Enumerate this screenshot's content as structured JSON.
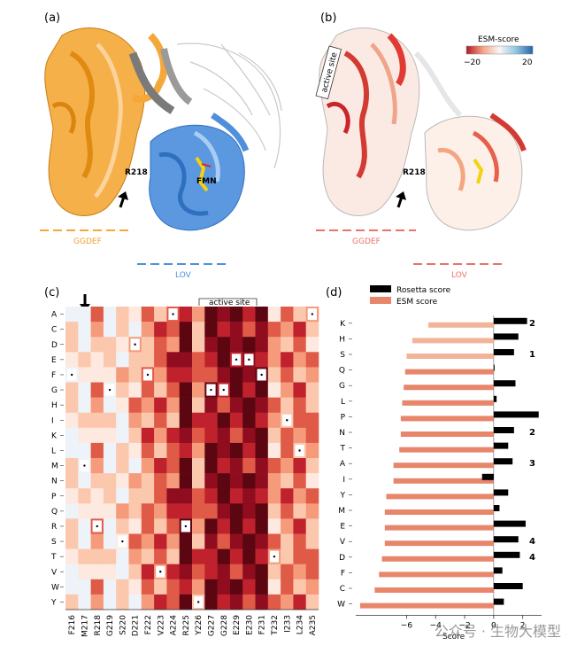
{
  "panels": {
    "a": {
      "label": "(a)",
      "residue_label": "R218",
      "fmn_label": "FMN",
      "domain_left": "GGDEF",
      "domain_right": "LOV",
      "colors": {
        "ggdef": "#f5a83a",
        "lov": "#4f8fdc",
        "linker": "#7a7a7a"
      }
    },
    "b": {
      "label": "(b)",
      "residue_label": "R218",
      "active_site_label": "active site",
      "domain_left": "GGDEF",
      "domain_right": "LOV",
      "colorbar_title": "ESM-score",
      "colorbar_min": "−20",
      "colorbar_max": "20",
      "colorbar_colors": [
        "#b2182b",
        "#d6604d",
        "#f4a582",
        "#fddbc7",
        "#f7f7f7",
        "#d1e5f0",
        "#92c5de",
        "#4393c3",
        "#2166ac"
      ],
      "domain_color": "#e8736b"
    },
    "c": {
      "label": "(c)",
      "active_site_label": "active site"
    },
    "d": {
      "label": "(d)",
      "legend_rosetta": "Rosetta score",
      "legend_esm": "ESM score",
      "xlabel": "Score",
      "xticks": [
        "−6",
        "−4",
        "−2",
        "0",
        "2"
      ]
    }
  },
  "heatmap": {
    "rows": [
      "A",
      "C",
      "D",
      "E",
      "F",
      "G",
      "H",
      "I",
      "K",
      "L",
      "M",
      "N",
      "P",
      "Q",
      "R",
      "S",
      "T",
      "V",
      "W",
      "Y"
    ],
    "cols": [
      "F216",
      "M217",
      "R218",
      "G219",
      "S220",
      "D221",
      "F222",
      "V223",
      "A224",
      "R225",
      "Y226",
      "G227",
      "G228",
      "E229",
      "E230",
      "F231",
      "T232",
      "I233",
      "L234",
      "A235"
    ],
    "wildtype_dots": [
      [
        4,
        0
      ],
      [
        10,
        1
      ],
      [
        14,
        2
      ],
      [
        5,
        3
      ],
      [
        15,
        4
      ],
      [
        2,
        5
      ],
      [
        4,
        6
      ],
      [
        17,
        7
      ],
      [
        0,
        8
      ],
      [
        14,
        9
      ],
      [
        19,
        10
      ],
      [
        5,
        11
      ],
      [
        5,
        12
      ],
      [
        3,
        13
      ],
      [
        3,
        14
      ],
      [
        4,
        15
      ],
      [
        16,
        16
      ],
      [
        7,
        17
      ],
      [
        9,
        18
      ],
      [
        0,
        19
      ]
    ],
    "col_base": [
      0.22,
      0.12,
      0.35,
      0.15,
      0.22,
      0.3,
      0.45,
      0.5,
      0.55,
      0.88,
      0.45,
      0.78,
      0.8,
      0.8,
      0.8,
      0.85,
      0.38,
      0.45,
      0.5,
      0.42
    ],
    "colors": [
      "#eef3f9",
      "#fde9df",
      "#fbc7ad",
      "#f59a7a",
      "#e05a48",
      "#c0222d",
      "#8f0d1e",
      "#5c0611"
    ]
  },
  "chart_data": {
    "type": "bar",
    "categories": [
      "K",
      "H",
      "S",
      "Q",
      "G",
      "L",
      "P",
      "N",
      "T",
      "A",
      "I",
      "Y",
      "M",
      "E",
      "V",
      "D",
      "F",
      "C",
      "W"
    ],
    "series": [
      {
        "name": "Rosetta score",
        "values": [
          2.3,
          1.7,
          1.4,
          0.05,
          1.5,
          0.2,
          3.1,
          1.4,
          1.0,
          1.3,
          -0.8,
          1.0,
          0.4,
          2.2,
          1.7,
          1.8,
          0.6,
          2.0,
          0.7
        ]
      },
      {
        "name": "ESM score",
        "values": [
          -4.5,
          -5.6,
          -6.0,
          -6.1,
          -6.2,
          -6.3,
          -6.4,
          -6.4,
          -6.5,
          -6.9,
          -6.9,
          -7.4,
          -7.5,
          -7.5,
          -7.5,
          -7.7,
          -7.9,
          -8.2,
          -9.2
        ]
      }
    ],
    "annotations": [
      {
        "category": "K",
        "text": "2"
      },
      {
        "category": "S",
        "text": "1"
      },
      {
        "category": "N",
        "text": "2"
      },
      {
        "category": "A",
        "text": "3"
      },
      {
        "category": "V",
        "text": "4"
      },
      {
        "category": "D",
        "text": "4"
      }
    ],
    "xlabel": "Score",
    "xlim": [
      -9.5,
      3.3
    ],
    "xticks": [
      -6,
      -4,
      -2,
      0,
      2
    ]
  },
  "watermark": "公众号 · 生物大模型"
}
